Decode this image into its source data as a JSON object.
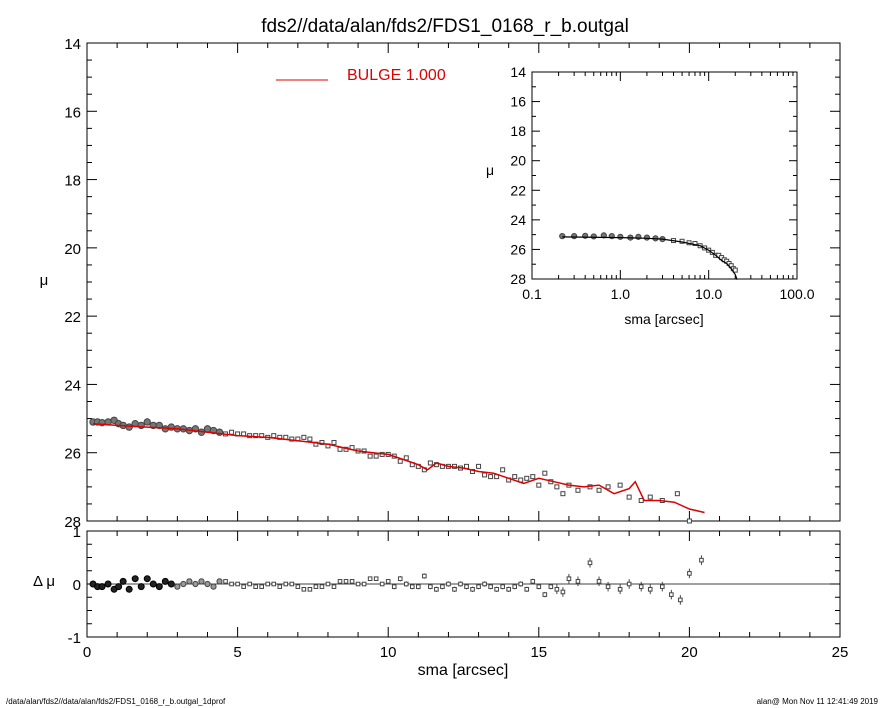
{
  "title": "fds2//data/alan/fds2/FDS1_0168_r_b.outgal",
  "footer": {
    "left": "/data/alan/fds2//data/alan/fds2/FDS1_0168_r_b.outgal_1dprof",
    "right": "alan@  Mon Nov 11 12:41:49 2019"
  },
  "colors": {
    "model": "#dd0000",
    "data": "#555555",
    "axis": "#000000"
  },
  "chart_data": [
    {
      "type": "scatter",
      "panel": "main",
      "xlabel": "",
      "ylabel": "μ",
      "xlim": [
        0,
        25
      ],
      "ylim": [
        28,
        14
      ],
      "y_inverted": true,
      "yticks": [
        "14",
        "16",
        "18",
        "20",
        "22",
        "24",
        "26",
        "28"
      ],
      "legend": {
        "label": "BULGE  1.000",
        "placement": "top-center"
      },
      "series": [
        {
          "name": "",
          "kind": "points",
          "x": [
            0.2,
            0.35,
            0.5,
            0.7,
            0.9,
            1.05,
            1.2,
            1.4,
            1.6,
            1.8,
            2.0,
            2.2,
            2.4,
            2.6,
            2.8,
            3.0,
            3.2,
            3.4,
            3.6,
            3.8,
            4.0,
            4.2,
            4.4,
            4.6,
            4.8,
            5.0,
            5.2,
            5.4,
            5.6,
            5.8,
            6.0,
            6.2,
            6.4,
            6.6,
            6.8,
            7.0,
            7.2,
            7.4,
            7.6,
            7.8,
            8.0,
            8.2,
            8.4,
            8.6,
            8.8,
            9.0,
            9.2,
            9.4,
            9.6,
            9.8,
            10.0,
            10.2,
            10.4,
            10.6,
            10.8,
            11.0,
            11.2,
            11.4,
            11.6,
            11.8,
            12.0,
            12.2,
            12.4,
            12.6,
            12.8,
            13.0,
            13.2,
            13.4,
            13.6,
            13.8,
            14.0,
            14.2,
            14.4,
            14.6,
            14.8,
            15.0,
            15.2,
            15.4,
            15.6,
            15.8,
            16.0,
            16.3,
            16.7,
            17.0,
            17.3,
            17.7,
            18.0,
            18.4,
            18.7,
            19.1,
            19.6,
            20.0
          ],
          "y": [
            25.1,
            25.1,
            25.12,
            25.1,
            25.05,
            25.15,
            25.2,
            25.25,
            25.15,
            25.2,
            25.1,
            25.2,
            25.2,
            25.3,
            25.25,
            25.3,
            25.3,
            25.35,
            25.3,
            25.4,
            25.3,
            25.35,
            25.4,
            25.45,
            25.4,
            25.45,
            25.45,
            25.5,
            25.5,
            25.5,
            25.55,
            25.5,
            25.55,
            25.55,
            25.6,
            25.6,
            25.55,
            25.6,
            25.75,
            25.7,
            25.8,
            25.7,
            25.9,
            25.9,
            25.85,
            25.95,
            25.95,
            26.1,
            26.1,
            26.05,
            26.05,
            26.1,
            26.25,
            26.15,
            26.35,
            26.4,
            26.5,
            26.3,
            26.35,
            26.4,
            26.4,
            26.4,
            26.45,
            26.4,
            26.55,
            26.4,
            26.65,
            26.7,
            26.7,
            26.5,
            26.8,
            26.7,
            26.8,
            26.75,
            26.7,
            26.95,
            26.6,
            26.85,
            27.0,
            27.2,
            26.95,
            27.1,
            27.0,
            27.1,
            27.0,
            26.95,
            27.3,
            27.4,
            27.3,
            27.4,
            27.2,
            28.0
          ]
        },
        {
          "name": "BULGE  1.000",
          "kind": "line",
          "x": [
            0.2,
            1.0,
            2.0,
            3.0,
            4.0,
            5.0,
            6.0,
            7.0,
            8.0,
            8.5,
            9.0,
            9.5,
            10.0,
            10.5,
            11.0,
            11.3,
            11.6,
            12.0,
            12.5,
            13.0,
            13.5,
            14.0,
            14.5,
            15.0,
            15.5,
            16.0,
            16.5,
            17.0,
            17.5,
            18.0,
            18.2,
            18.5,
            19.0,
            19.5,
            20.0,
            20.5
          ],
          "y": [
            25.15,
            25.2,
            25.25,
            25.3,
            25.4,
            25.5,
            25.55,
            25.65,
            25.75,
            25.85,
            25.95,
            26.0,
            26.05,
            26.2,
            26.35,
            26.5,
            26.3,
            26.4,
            26.45,
            26.55,
            26.6,
            26.75,
            26.9,
            26.75,
            26.85,
            26.95,
            27.0,
            26.95,
            27.2,
            27.05,
            26.85,
            27.4,
            27.4,
            27.45,
            27.65,
            27.75
          ]
        }
      ]
    },
    {
      "type": "scatter",
      "panel": "inset",
      "xlabel": "sma [arcsec]",
      "ylabel": "μ",
      "x_scale": "log",
      "xlim": [
        0.1,
        100.0
      ],
      "xticks": [
        "0.1",
        "1.0",
        "10.0",
        "100.0"
      ],
      "ylim": [
        28,
        14
      ],
      "y_inverted": true,
      "yticks": [
        "14",
        "16",
        "18",
        "20",
        "22",
        "24",
        "26",
        "28"
      ],
      "series": [
        {
          "name": "",
          "kind": "points",
          "x": [
            0.22,
            0.3,
            0.4,
            0.5,
            0.65,
            0.8,
            1.0,
            1.3,
            1.6,
            2.0,
            2.5,
            3.0,
            4.0,
            5.0,
            6.0,
            7.0,
            8.0,
            9.0,
            10.0,
            11.0,
            12.0,
            13.0,
            14.0,
            15.0,
            16.0,
            17.0,
            18.0,
            19.0,
            20.0
          ],
          "y": [
            25.1,
            25.1,
            25.08,
            25.12,
            25.05,
            25.1,
            25.15,
            25.2,
            25.15,
            25.2,
            25.25,
            25.3,
            25.4,
            25.45,
            25.55,
            25.6,
            25.75,
            25.9,
            26.05,
            26.2,
            26.4,
            26.4,
            26.55,
            26.7,
            26.8,
            26.95,
            27.1,
            27.3,
            27.4
          ]
        },
        {
          "name": "",
          "kind": "line",
          "x": [
            0.22,
            1.0,
            2.0,
            3.0,
            5.0,
            8.0,
            10.0,
            12.0,
            14.0,
            16.0,
            18.0,
            20.0,
            21.0
          ],
          "y": [
            25.15,
            25.2,
            25.25,
            25.3,
            25.5,
            25.75,
            26.05,
            26.4,
            26.75,
            26.95,
            27.3,
            27.7,
            28.05
          ]
        }
      ]
    },
    {
      "type": "scatter",
      "panel": "residual",
      "xlabel": "sma [arcsec]",
      "ylabel": "Δ μ",
      "xlim": [
        0,
        25
      ],
      "xticks": [
        "0",
        "5",
        "10",
        "15",
        "20",
        "25"
      ],
      "ylim": [
        -1,
        1
      ],
      "yticks": [
        "-1",
        "0",
        "1"
      ],
      "reference_line": 0,
      "series": [
        {
          "name": "",
          "kind": "points",
          "x": [
            0.2,
            0.35,
            0.5,
            0.7,
            0.9,
            1.05,
            1.2,
            1.4,
            1.6,
            1.8,
            2.0,
            2.2,
            2.4,
            2.6,
            2.8,
            3.0,
            3.2,
            3.4,
            3.6,
            3.8,
            4.0,
            4.2,
            4.4,
            4.6,
            4.8,
            5.0,
            5.2,
            5.4,
            5.6,
            5.8,
            6.0,
            6.2,
            6.4,
            6.6,
            6.8,
            7.0,
            7.2,
            7.4,
            7.6,
            7.8,
            8.0,
            8.2,
            8.4,
            8.6,
            8.8,
            9.0,
            9.2,
            9.4,
            9.6,
            9.8,
            10.0,
            10.2,
            10.4,
            10.6,
            10.8,
            11.0,
            11.2,
            11.4,
            11.6,
            11.8,
            12.0,
            12.2,
            12.4,
            12.6,
            12.8,
            13.0,
            13.2,
            13.4,
            13.6,
            13.8,
            14.0,
            14.2,
            14.4,
            14.6,
            14.8,
            15.0,
            15.2,
            15.4,
            15.6,
            15.8,
            16.0,
            16.3,
            16.7,
            17.0,
            17.3,
            17.7,
            18.0,
            18.4,
            18.7,
            19.1,
            19.4,
            19.7,
            20.0,
            20.4
          ],
          "y": [
            0.0,
            -0.05,
            -0.05,
            0.0,
            -0.1,
            -0.05,
            0.05,
            -0.1,
            0.1,
            -0.05,
            0.1,
            0.0,
            -0.05,
            0.05,
            0.0,
            -0.05,
            0.0,
            0.05,
            0.0,
            0.05,
            0.0,
            -0.05,
            0.05,
            0.05,
            0.0,
            0.0,
            -0.05,
            0.0,
            -0.05,
            -0.05,
            0.0,
            0.0,
            -0.05,
            0.0,
            0.0,
            -0.05,
            -0.1,
            -0.1,
            -0.05,
            -0.05,
            0.0,
            -0.05,
            0.05,
            0.05,
            0.05,
            0.0,
            0.0,
            0.1,
            0.1,
            0.0,
            0.05,
            -0.05,
            0.1,
            0.0,
            -0.05,
            -0.05,
            0.15,
            -0.05,
            -0.1,
            -0.05,
            0.0,
            -0.1,
            0.0,
            -0.05,
            -0.1,
            -0.05,
            0.0,
            -0.05,
            -0.1,
            -0.05,
            -0.1,
            -0.05,
            0.0,
            -0.1,
            0.05,
            -0.05,
            -0.2,
            -0.05,
            -0.1,
            -0.15,
            0.1,
            0.05,
            0.4,
            0.05,
            -0.05,
            -0.1,
            0.0,
            -0.05,
            -0.1,
            -0.05,
            -0.2,
            -0.3,
            0.2,
            0.45
          ]
        }
      ]
    }
  ]
}
